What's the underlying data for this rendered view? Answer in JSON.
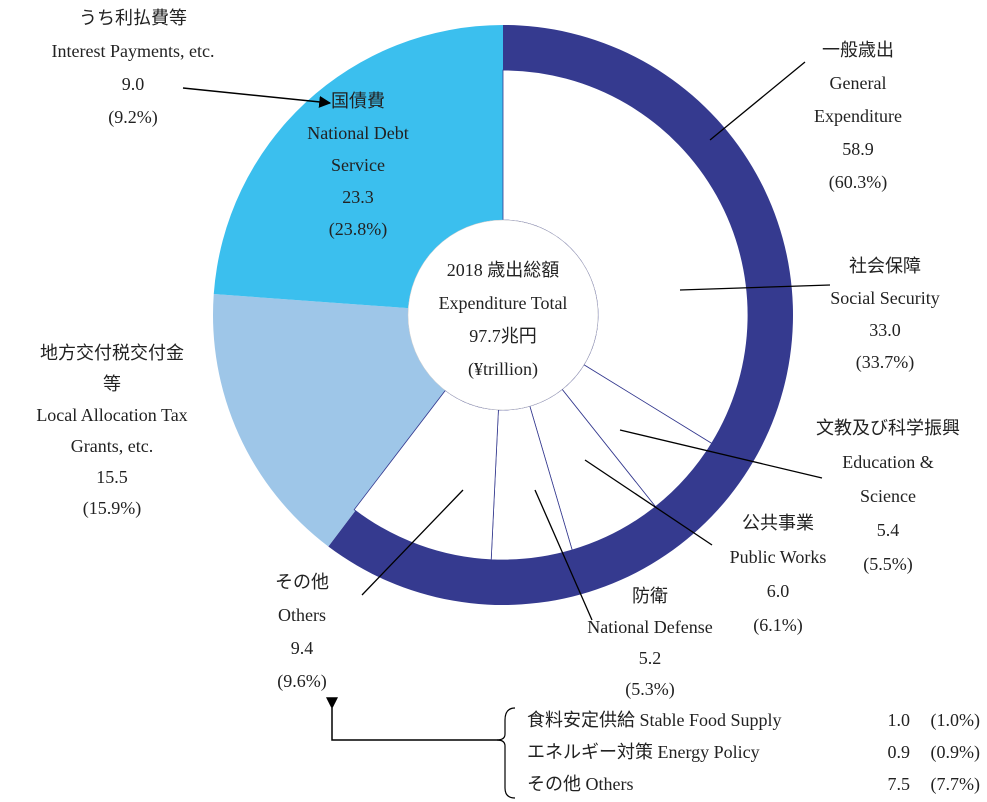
{
  "chart_data": {
    "type": "donut",
    "center_text": [
      "2018 歳出総額",
      "Expenditure Total",
      "97.7兆円",
      "(¥trillion)"
    ],
    "segments": [
      {
        "label_ja": [
          "一般歳出"
        ],
        "label_en": [
          "General",
          "Expenditure"
        ],
        "value": 58.9,
        "value_label": "58.9",
        "percent_label": "(60.3%)",
        "color": "#353a8f"
      },
      {
        "label_ja": [
          "地方交付税交付金",
          "等"
        ],
        "label_en": [
          "Local Allocation Tax",
          "Grants, etc."
        ],
        "value": 15.5,
        "value_label": "15.5",
        "percent_label": "(15.9%)",
        "color": "#9ec6e8"
      },
      {
        "label_ja": [
          "国債費"
        ],
        "label_en": [
          "National Debt",
          "Service"
        ],
        "value": 23.3,
        "value_label": "23.3",
        "percent_label": "(23.8%)",
        "color": "#3bbfee"
      }
    ],
    "sub_segments": [
      {
        "label_ja": [
          "社会保障"
        ],
        "label_en": [
          "Social Security"
        ],
        "value": 33.0,
        "value_label": "33.0",
        "percent_label": "(33.7%)"
      },
      {
        "label_ja": [
          "文教及び科学振興"
        ],
        "label_en": [
          "Education &",
          "Science"
        ],
        "value": 5.4,
        "value_label": "5.4",
        "percent_label": "(5.5%)"
      },
      {
        "label_ja": [
          "公共事業"
        ],
        "label_en": [
          "Public Works"
        ],
        "value": 6.0,
        "value_label": "6.0",
        "percent_label": "(6.1%)"
      },
      {
        "label_ja": [
          "防衛"
        ],
        "label_en": [
          "National Defense"
        ],
        "value": 5.2,
        "value_label": "5.2",
        "percent_label": "(5.3%)"
      },
      {
        "label_ja": [
          "その他"
        ],
        "label_en": [
          "Others"
        ],
        "value": 9.4,
        "value_label": "9.4",
        "percent_label": "(9.6%)"
      }
    ],
    "interest": {
      "label_ja": [
        "うち利払費等"
      ],
      "label_en": [
        "Interest Payments, etc."
      ],
      "value": 9.0,
      "value_label": "9.0",
      "percent_label": "(9.2%)"
    },
    "others_breakdown": [
      {
        "name": "食料安定供給 Stable Food Supply",
        "value": 1.0,
        "value_label": "1.0",
        "percent_label": "(1.0%)"
      },
      {
        "name": "エネルギー対策 Energy Policy",
        "value": 0.9,
        "value_label": "0.9",
        "percent_label": "(0.9%)"
      },
      {
        "name": "その他 Others",
        "value": 7.5,
        "value_label": "7.5",
        "percent_label": "(7.7%)"
      }
    ]
  }
}
